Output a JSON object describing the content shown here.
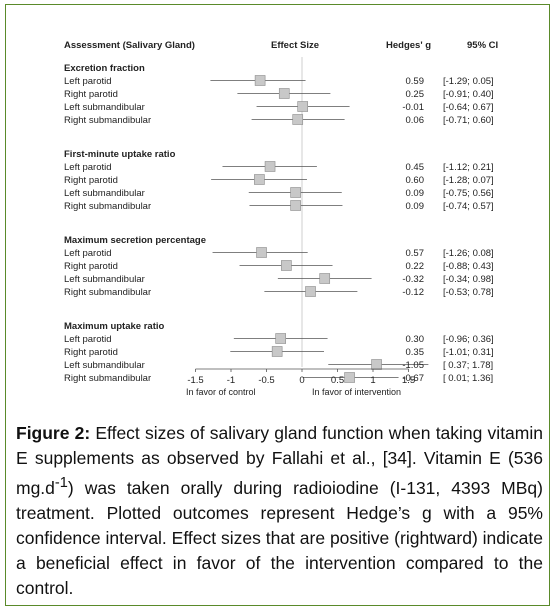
{
  "chart_data": {
    "type": "forest",
    "headers": {
      "assessment": "Assessment (Salivary Gland)",
      "effect_size": "Effect Size",
      "hedges": "Hedges' g",
      "ci": "95% CI"
    },
    "xlim": [
      -1.5,
      1.5
    ],
    "x_ticks": [
      "-1.5",
      "-1",
      "-0.5",
      "0",
      "0.5",
      "1",
      "1.5"
    ],
    "favor_left": "In favor of control",
    "favor_right": "In favor of intervention",
    "groups": [
      {
        "name": "Excretion fraction",
        "rows": [
          {
            "label": "Left parotid",
            "g_text": "0.59",
            "ci_text": "[-1.29; 0.05]",
            "mean": -0.59,
            "lo": -1.29,
            "hi": 0.05
          },
          {
            "label": "Right parotid",
            "g_text": "0.25",
            "ci_text": "[-0.91; 0.40]",
            "mean": -0.25,
            "lo": -0.91,
            "hi": 0.4
          },
          {
            "label": "Left submandibular",
            "g_text": "-0.01",
            "ci_text": "[-0.64; 0.67]",
            "mean": 0.01,
            "lo": -0.64,
            "hi": 0.67
          },
          {
            "label": "Right submandibular",
            "g_text": "0.06",
            "ci_text": "[-0.71; 0.60]",
            "mean": -0.06,
            "lo": -0.71,
            "hi": 0.6
          }
        ]
      },
      {
        "name": "First-minute uptake ratio",
        "rows": [
          {
            "label": "Left parotid",
            "g_text": "0.45",
            "ci_text": "[-1.12; 0.21]",
            "mean": -0.45,
            "lo": -1.12,
            "hi": 0.21
          },
          {
            "label": "Right parotid",
            "g_text": "0.60",
            "ci_text": "[-1.28; 0.07]",
            "mean": -0.6,
            "lo": -1.28,
            "hi": 0.07
          },
          {
            "label": "Left submandibular",
            "g_text": "0.09",
            "ci_text": "[-0.75; 0.56]",
            "mean": -0.09,
            "lo": -0.75,
            "hi": 0.56
          },
          {
            "label": "Right submandibular",
            "g_text": "0.09",
            "ci_text": "[-0.74; 0.57]",
            "mean": -0.09,
            "lo": -0.74,
            "hi": 0.57
          }
        ]
      },
      {
        "name": "Maximum secretion percentage",
        "rows": [
          {
            "label": "Left parotid",
            "g_text": "0.57",
            "ci_text": "[-1.26; 0.08]",
            "mean": -0.57,
            "lo": -1.26,
            "hi": 0.08
          },
          {
            "label": "Right parotid",
            "g_text": "0.22",
            "ci_text": "[-0.88; 0.43]",
            "mean": -0.22,
            "lo": -0.88,
            "hi": 0.43
          },
          {
            "label": "Left submandibular",
            "g_text": "-0.32",
            "ci_text": "[-0.34; 0.98]",
            "mean": 0.32,
            "lo": -0.34,
            "hi": 0.98
          },
          {
            "label": "Right submandibular",
            "g_text": "-0.12",
            "ci_text": "[-0.53; 0.78]",
            "mean": 0.12,
            "lo": -0.53,
            "hi": 0.78
          }
        ]
      },
      {
        "name": "Maximum uptake ratio",
        "rows": [
          {
            "label": "Left parotid",
            "g_text": "0.30",
            "ci_text": "[-0.96; 0.36]",
            "mean": -0.3,
            "lo": -0.96,
            "hi": 0.36
          },
          {
            "label": "Right parotid",
            "g_text": "0.35",
            "ci_text": "[-1.01; 0.31]",
            "mean": -0.35,
            "lo": -1.01,
            "hi": 0.31
          },
          {
            "label": "Left submandibular",
            "g_text": "-1.05",
            "ci_text": "[ 0.37; 1.78]",
            "mean": 1.05,
            "lo": 0.37,
            "hi": 1.78
          },
          {
            "label": "Right submandibular",
            "g_text": "-0.67",
            "ci_text": "[ 0.01; 1.36]",
            "mean": 0.67,
            "lo": 0.01,
            "hi": 1.36
          }
        ]
      }
    ]
  },
  "caption": {
    "label": "Figure 2:",
    "text_before_sup": " Effect sizes of salivary gland function when taking vitamin E supplements as observed by Fallahi et al., [34]. Vitamin E (536 mg.d",
    "sup": "-1",
    "text_after_sup": ") was taken orally during radioiodine (I-131, 4393 MBq) treatment. Plotted outcomes represent Hedge’s g with a 95% confidence interval. Effect sizes that are positive (rightward) indicate a beneficial effect in favor of the intervention compared to the control."
  },
  "colors": {
    "frame": "#5a8a2a",
    "marker_fill": "#c8c8c8",
    "marker_stroke": "#8a8a8a",
    "ci_line": "#555555",
    "zero_line": "#bbbbbb"
  }
}
